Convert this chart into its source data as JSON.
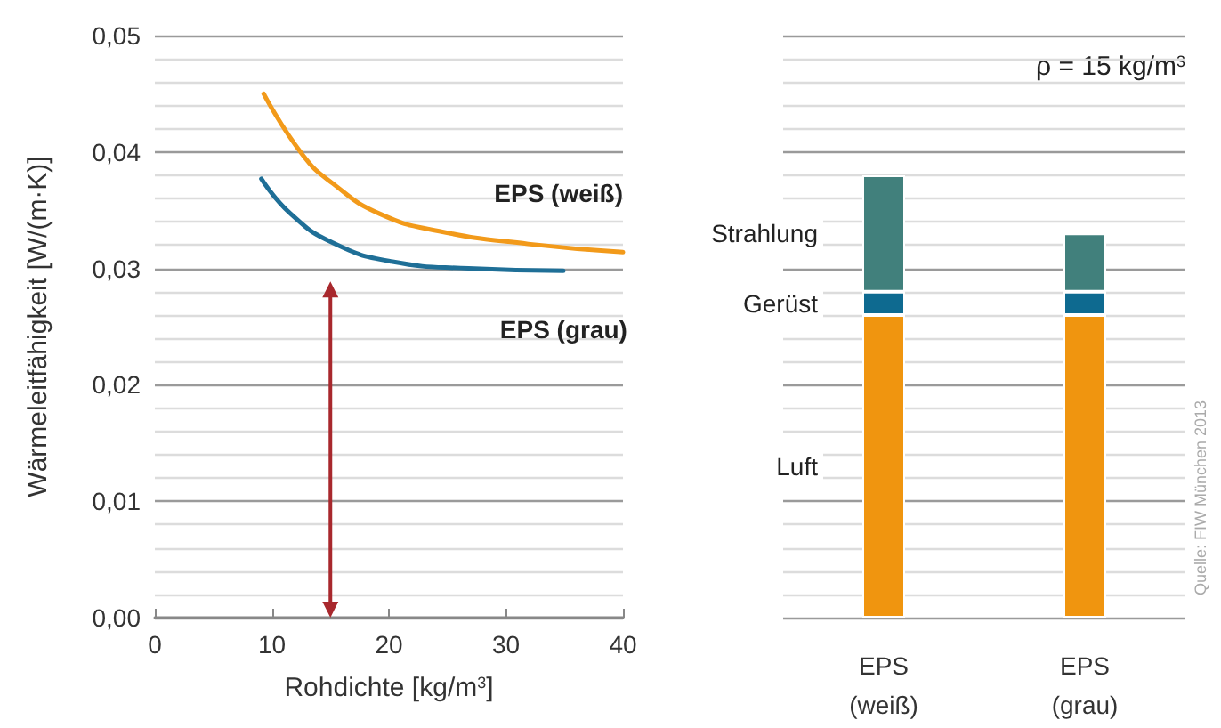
{
  "chart_data": [
    {
      "type": "line",
      "xlabel": "Rohdichte [kg/m$^{3}$]",
      "ylabel": "Wärmeleitfähigkeit [W/(m·K)]",
      "marker": "none",
      "line_style": "solid",
      "grid": "y",
      "legend": false,
      "series": [
        {
          "name": "EPS (weiß)",
          "color": "#f29a1a",
          "x": [
            9.3,
            12.6,
            15.2,
            19.2,
            24.3,
            31.9,
            40
          ],
          "values": [
            0.045,
            0.0398,
            0.0373,
            0.0347,
            0.0332,
            0.0321,
            0.0314
          ]
        },
        {
          "name": "EPS (grau)",
          "color": "#1f6f97",
          "x": [
            9.1,
            11.6,
            15.2,
            20.2,
            26.8,
            34.9
          ],
          "values": [
            0.0377,
            0.0347,
            0.0322,
            0.0306,
            0.03,
            0.0298
          ]
        }
      ],
      "ref_lines": [
        {
          "axis": "x",
          "value": 15,
          "color": "#a8282d"
        }
      ],
      "xlim": [
        0,
        40
      ],
      "xticks": [
        0,
        10,
        20,
        30,
        40
      ],
      "ylim": [
        0,
        0.05
      ],
      "yticks": [
        {
          "value": 0,
          "label": "0,00"
        },
        {
          "value": 0.002,
          "label": null
        },
        {
          "value": 0.004,
          "label": null
        },
        {
          "value": 0.006,
          "label": null
        },
        {
          "value": 0.008,
          "label": null
        },
        {
          "value": 0.01,
          "label": "0,01"
        },
        {
          "value": 0.012,
          "label": null
        },
        {
          "value": 0.014,
          "label": null
        },
        {
          "value": 0.016,
          "label": null
        },
        {
          "value": 0.018,
          "label": null
        },
        {
          "value": 0.02,
          "label": "0,02"
        },
        {
          "value": 0.022,
          "label": null
        },
        {
          "value": 0.024,
          "label": null
        },
        {
          "value": 0.026,
          "label": null
        },
        {
          "value": 0.028,
          "label": null
        },
        {
          "value": 0.03,
          "label": "0,03"
        },
        {
          "value": 0.032,
          "label": null
        },
        {
          "value": 0.034,
          "label": null
        },
        {
          "value": 0.036,
          "label": null
        },
        {
          "value": 0.038,
          "label": null
        },
        {
          "value": 0.04,
          "label": "0,04"
        },
        {
          "value": 0.042,
          "label": null
        },
        {
          "value": 0.044,
          "label": null
        },
        {
          "value": 0.046,
          "label": null
        },
        {
          "value": 0.048,
          "label": null
        },
        {
          "value": 0.05,
          "label": "0,05"
        }
      ]
    },
    {
      "type": "bar",
      "stacked": true,
      "categories": [
        "EPS\n(weiß)",
        "EPS\n(grau)"
      ],
      "grid": "y",
      "legend": false,
      "tick_labels": "x",
      "series": [
        {
          "name": "Luft",
          "color": "#f0950f",
          "values": [
            0.026,
            0.026
          ]
        },
        {
          "name": "Gerüst",
          "color": "#0e6a90",
          "values": [
            0.002,
            0.002
          ]
        },
        {
          "name": "Strahlung",
          "color": "#41807c",
          "values": [
            0.01,
            0.005
          ]
        }
      ],
      "ylim": [
        0,
        0.05
      ],
      "yticks": [
        {
          "value": 0,
          "label": null
        },
        {
          "value": 0.002,
          "label": null
        },
        {
          "value": 0.004,
          "label": null
        },
        {
          "value": 0.006,
          "label": null
        },
        {
          "value": 0.008,
          "label": null
        },
        {
          "value": 0.01,
          "label": null
        },
        {
          "value": 0.012,
          "label": null
        },
        {
          "value": 0.014,
          "label": null
        },
        {
          "value": 0.016,
          "label": null
        },
        {
          "value": 0.018,
          "label": null
        },
        {
          "value": 0.02,
          "label": null
        },
        {
          "value": 0.022,
          "label": null
        },
        {
          "value": 0.024,
          "label": null
        },
        {
          "value": 0.026,
          "label": null
        },
        {
          "value": 0.028,
          "label": null
        },
        {
          "value": 0.03,
          "label": null
        },
        {
          "value": 0.032,
          "label": null
        },
        {
          "value": 0.034,
          "label": null
        },
        {
          "value": 0.036,
          "label": null
        },
        {
          "value": 0.038,
          "label": null
        },
        {
          "value": 0.04,
          "label": null
        },
        {
          "value": 0.042,
          "label": null
        },
        {
          "value": 0.044,
          "label": null
        },
        {
          "value": 0.046,
          "label": null
        },
        {
          "value": 0.048,
          "label": null
        },
        {
          "value": 0.05,
          "label": null
        }
      ],
      "annotations": [
        "ρ = 15 kg/m$^{3}$",
        "Quelle: FIW München 2013"
      ]
    }
  ]
}
